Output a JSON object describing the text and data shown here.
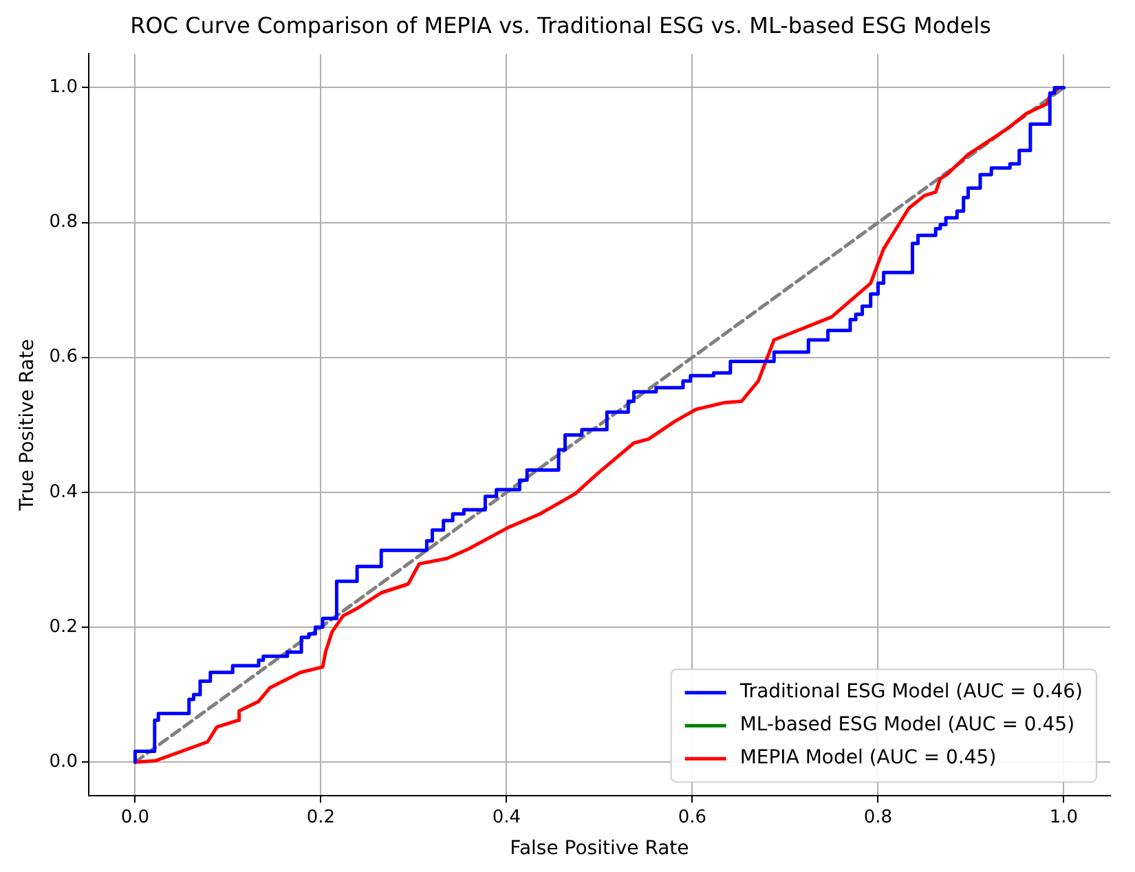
{
  "chart_data": {
    "type": "line",
    "title": "ROC Curve Comparison of MEPIA vs. Traditional ESG vs. ML-based ESG Models",
    "xlabel": "False Positive Rate",
    "ylabel": "True Positive Rate",
    "xlim": [
      -0.05,
      1.05
    ],
    "ylim": [
      -0.05,
      1.05
    ],
    "xticks": [
      {
        "value": 0,
        "label": "0.0"
      },
      {
        "value": 0.2,
        "label": "0.2"
      },
      {
        "value": 0.4,
        "label": "0.4"
      },
      {
        "value": 0.6,
        "label": "0.6"
      },
      {
        "value": 0.8,
        "label": "0.8"
      },
      {
        "value": 1,
        "label": "1.0"
      }
    ],
    "yticks": [
      {
        "value": 0,
        "label": "0.0"
      },
      {
        "value": 0.2,
        "label": "0.2"
      },
      {
        "value": 0.4,
        "label": "0.4"
      },
      {
        "value": 0.6,
        "label": "0.6"
      },
      {
        "value": 0.8,
        "label": "0.8"
      },
      {
        "value": 1,
        "label": "1.0"
      }
    ],
    "grid": true,
    "legend": "bottom right",
    "marker": "none",
    "series": [
      {
        "name": "Traditional ESG Model (AUC = 0.46)",
        "type": "step",
        "color": "#0000ff",
        "x": [
          0,
          0.021,
          0.025,
          0.058,
          0.063,
          0.07,
          0.081,
          0.105,
          0.133,
          0.138,
          0.164,
          0.179,
          0.187,
          0.194,
          0.202,
          0.217,
          0.239,
          0.265,
          0.314,
          0.32,
          0.332,
          0.342,
          0.354,
          0.377,
          0.389,
          0.414,
          0.422,
          0.456,
          0.463,
          0.481,
          0.508,
          0.531,
          0.537,
          0.561,
          0.59,
          0.598,
          0.623,
          0.641,
          0.688,
          0.725,
          0.746,
          0.77,
          0.776,
          0.783,
          0.792,
          0.8,
          0.806,
          0.837,
          0.843,
          0.862,
          0.867,
          0.873,
          0.885,
          0.892,
          0.897,
          0.91,
          0.922,
          0.942,
          0.952,
          0.964,
          0.985,
          0.99,
          1
        ],
        "values": [
          0,
          0.016,
          0.062,
          0.072,
          0.093,
          0.1,
          0.12,
          0.133,
          0.143,
          0.151,
          0.157,
          0.163,
          0.185,
          0.19,
          0.2,
          0.213,
          0.268,
          0.29,
          0.314,
          0.328,
          0.344,
          0.358,
          0.368,
          0.374,
          0.394,
          0.404,
          0.418,
          0.433,
          0.463,
          0.485,
          0.493,
          0.519,
          0.535,
          0.549,
          0.555,
          0.565,
          0.573,
          0.577,
          0.594,
          0.608,
          0.626,
          0.64,
          0.656,
          0.664,
          0.676,
          0.694,
          0.71,
          0.726,
          0.769,
          0.781,
          0.791,
          0.797,
          0.807,
          0.817,
          0.837,
          0.851,
          0.871,
          0.881,
          0.887,
          0.907,
          0.946,
          0.992,
          1
        ]
      },
      {
        "name": "ML-based ESG Model (AUC = 0.45)",
        "color": "#008000"
      },
      {
        "name": "MEPIA Model (AUC = 0.45)",
        "color": "#ff0000",
        "x": [
          0,
          0.022,
          0.078,
          0.088,
          0.111,
          0.112,
          0.133,
          0.145,
          0.178,
          0.202,
          0.205,
          0.212,
          0.224,
          0.238,
          0.265,
          0.294,
          0.306,
          0.336,
          0.359,
          0.402,
          0.436,
          0.474,
          0.499,
          0.537,
          0.553,
          0.581,
          0.604,
          0.635,
          0.653,
          0.671,
          0.688,
          0.75,
          0.792,
          0.806,
          0.833,
          0.85,
          0.862,
          0.867,
          0.874,
          0.897,
          0.927,
          0.942,
          0.96,
          0.982,
          0.985,
          0.994,
          1
        ],
        "values": [
          0,
          0.002,
          0.03,
          0.052,
          0.062,
          0.076,
          0.09,
          0.11,
          0.133,
          0.141,
          0.163,
          0.193,
          0.217,
          0.227,
          0.251,
          0.264,
          0.294,
          0.302,
          0.316,
          0.348,
          0.368,
          0.398,
          0.429,
          0.473,
          0.479,
          0.505,
          0.523,
          0.533,
          0.535,
          0.565,
          0.626,
          0.66,
          0.71,
          0.761,
          0.821,
          0.84,
          0.845,
          0.865,
          0.871,
          0.901,
          0.928,
          0.942,
          0.962,
          0.976,
          0.988,
          1,
          1
        ]
      },
      {
        "color": "#808080",
        "line_style": "dashed",
        "x": [
          0,
          1
        ],
        "values": [
          0,
          1
        ]
      }
    ]
  }
}
